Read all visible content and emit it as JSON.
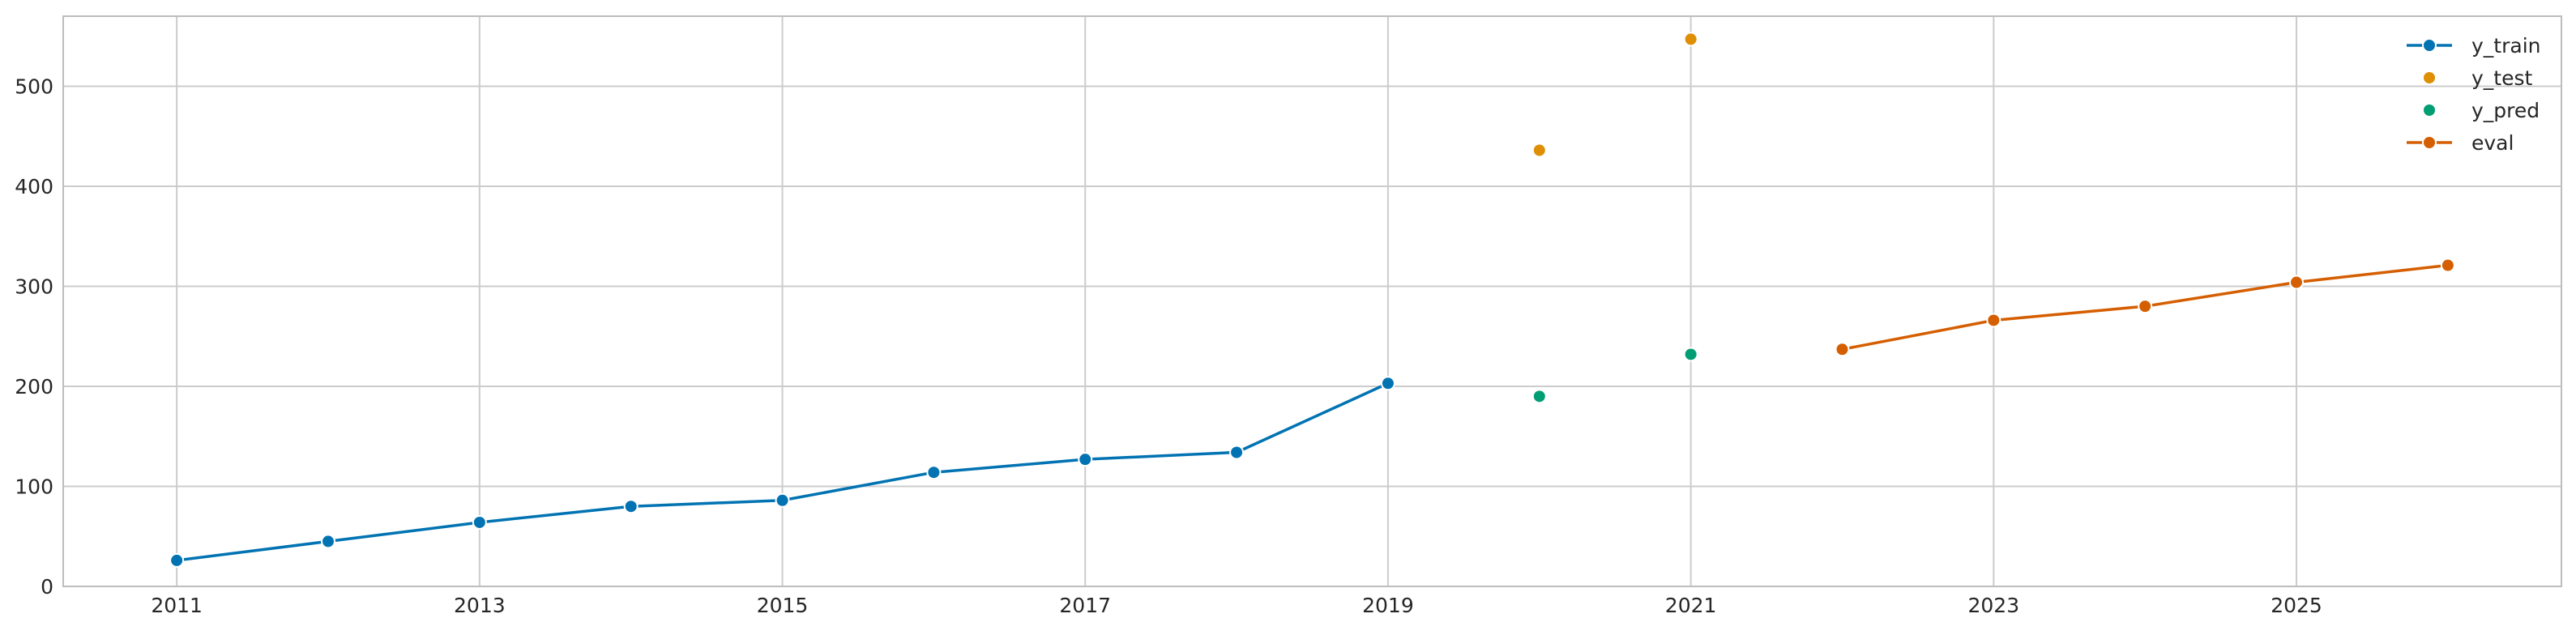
{
  "chart_data": {
    "type": "line",
    "title": "",
    "xlabel": "",
    "ylabel": "",
    "xlim": [
      2010.25,
      2026.75
    ],
    "ylim": [
      0,
      570
    ],
    "x_ticks": [
      2011,
      2013,
      2015,
      2017,
      2019,
      2021,
      2023,
      2025
    ],
    "y_ticks": [
      0,
      100,
      200,
      300,
      400,
      500
    ],
    "grid": true,
    "legend_position": "top-right",
    "series": [
      {
        "name": "y_train",
        "style": "line+marker",
        "color": "#0173b2",
        "x": [
          2011,
          2012,
          2013,
          2014,
          2015,
          2016,
          2017,
          2018,
          2019
        ],
        "values": [
          26,
          45,
          64,
          80,
          86,
          114,
          127,
          134,
          203
        ]
      },
      {
        "name": "y_test",
        "style": "marker",
        "color": "#de8f05",
        "x": [
          2020,
          2021
        ],
        "values": [
          436,
          547
        ]
      },
      {
        "name": "y_pred",
        "style": "marker",
        "color": "#029e73",
        "x": [
          2020,
          2021
        ],
        "values": [
          190,
          232
        ]
      },
      {
        "name": "eval",
        "style": "line+marker",
        "color": "#d55e00",
        "x": [
          2022,
          2023,
          2024,
          2025,
          2026
        ],
        "values": [
          237,
          266,
          280,
          304,
          321
        ]
      }
    ]
  }
}
